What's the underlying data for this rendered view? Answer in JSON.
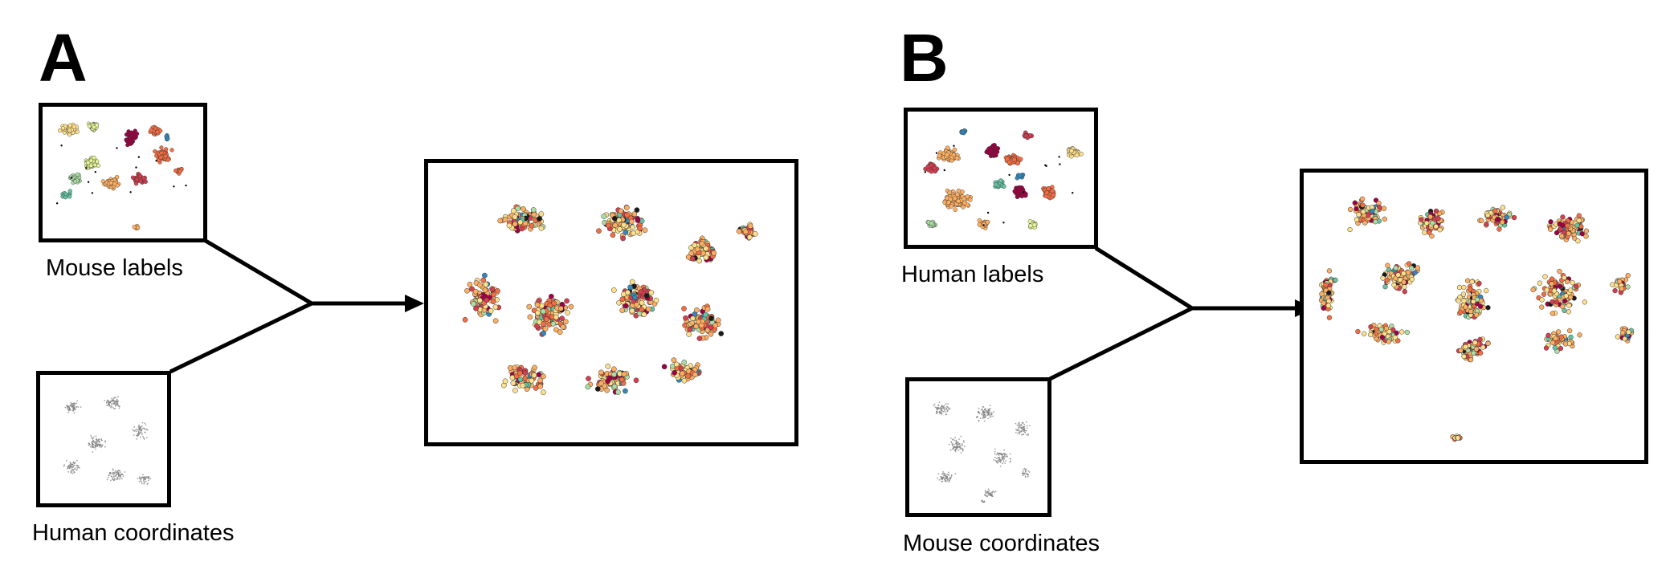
{
  "panel_a": {
    "letter": "A",
    "labels_caption": "Mouse labels",
    "coords_caption": "Human coordinates"
  },
  "panel_b": {
    "letter": "B",
    "labels_caption": "Human labels",
    "coords_caption": "Mouse coordinates"
  },
  "palette": [
    "#9e0142",
    "#d53e4f",
    "#f46d43",
    "#fdae61",
    "#fee08b",
    "#e6f598",
    "#abdda4",
    "#66c2a5",
    "#3288bd",
    "#1a1a1a"
  ],
  "grey_point_color": "#777777"
}
